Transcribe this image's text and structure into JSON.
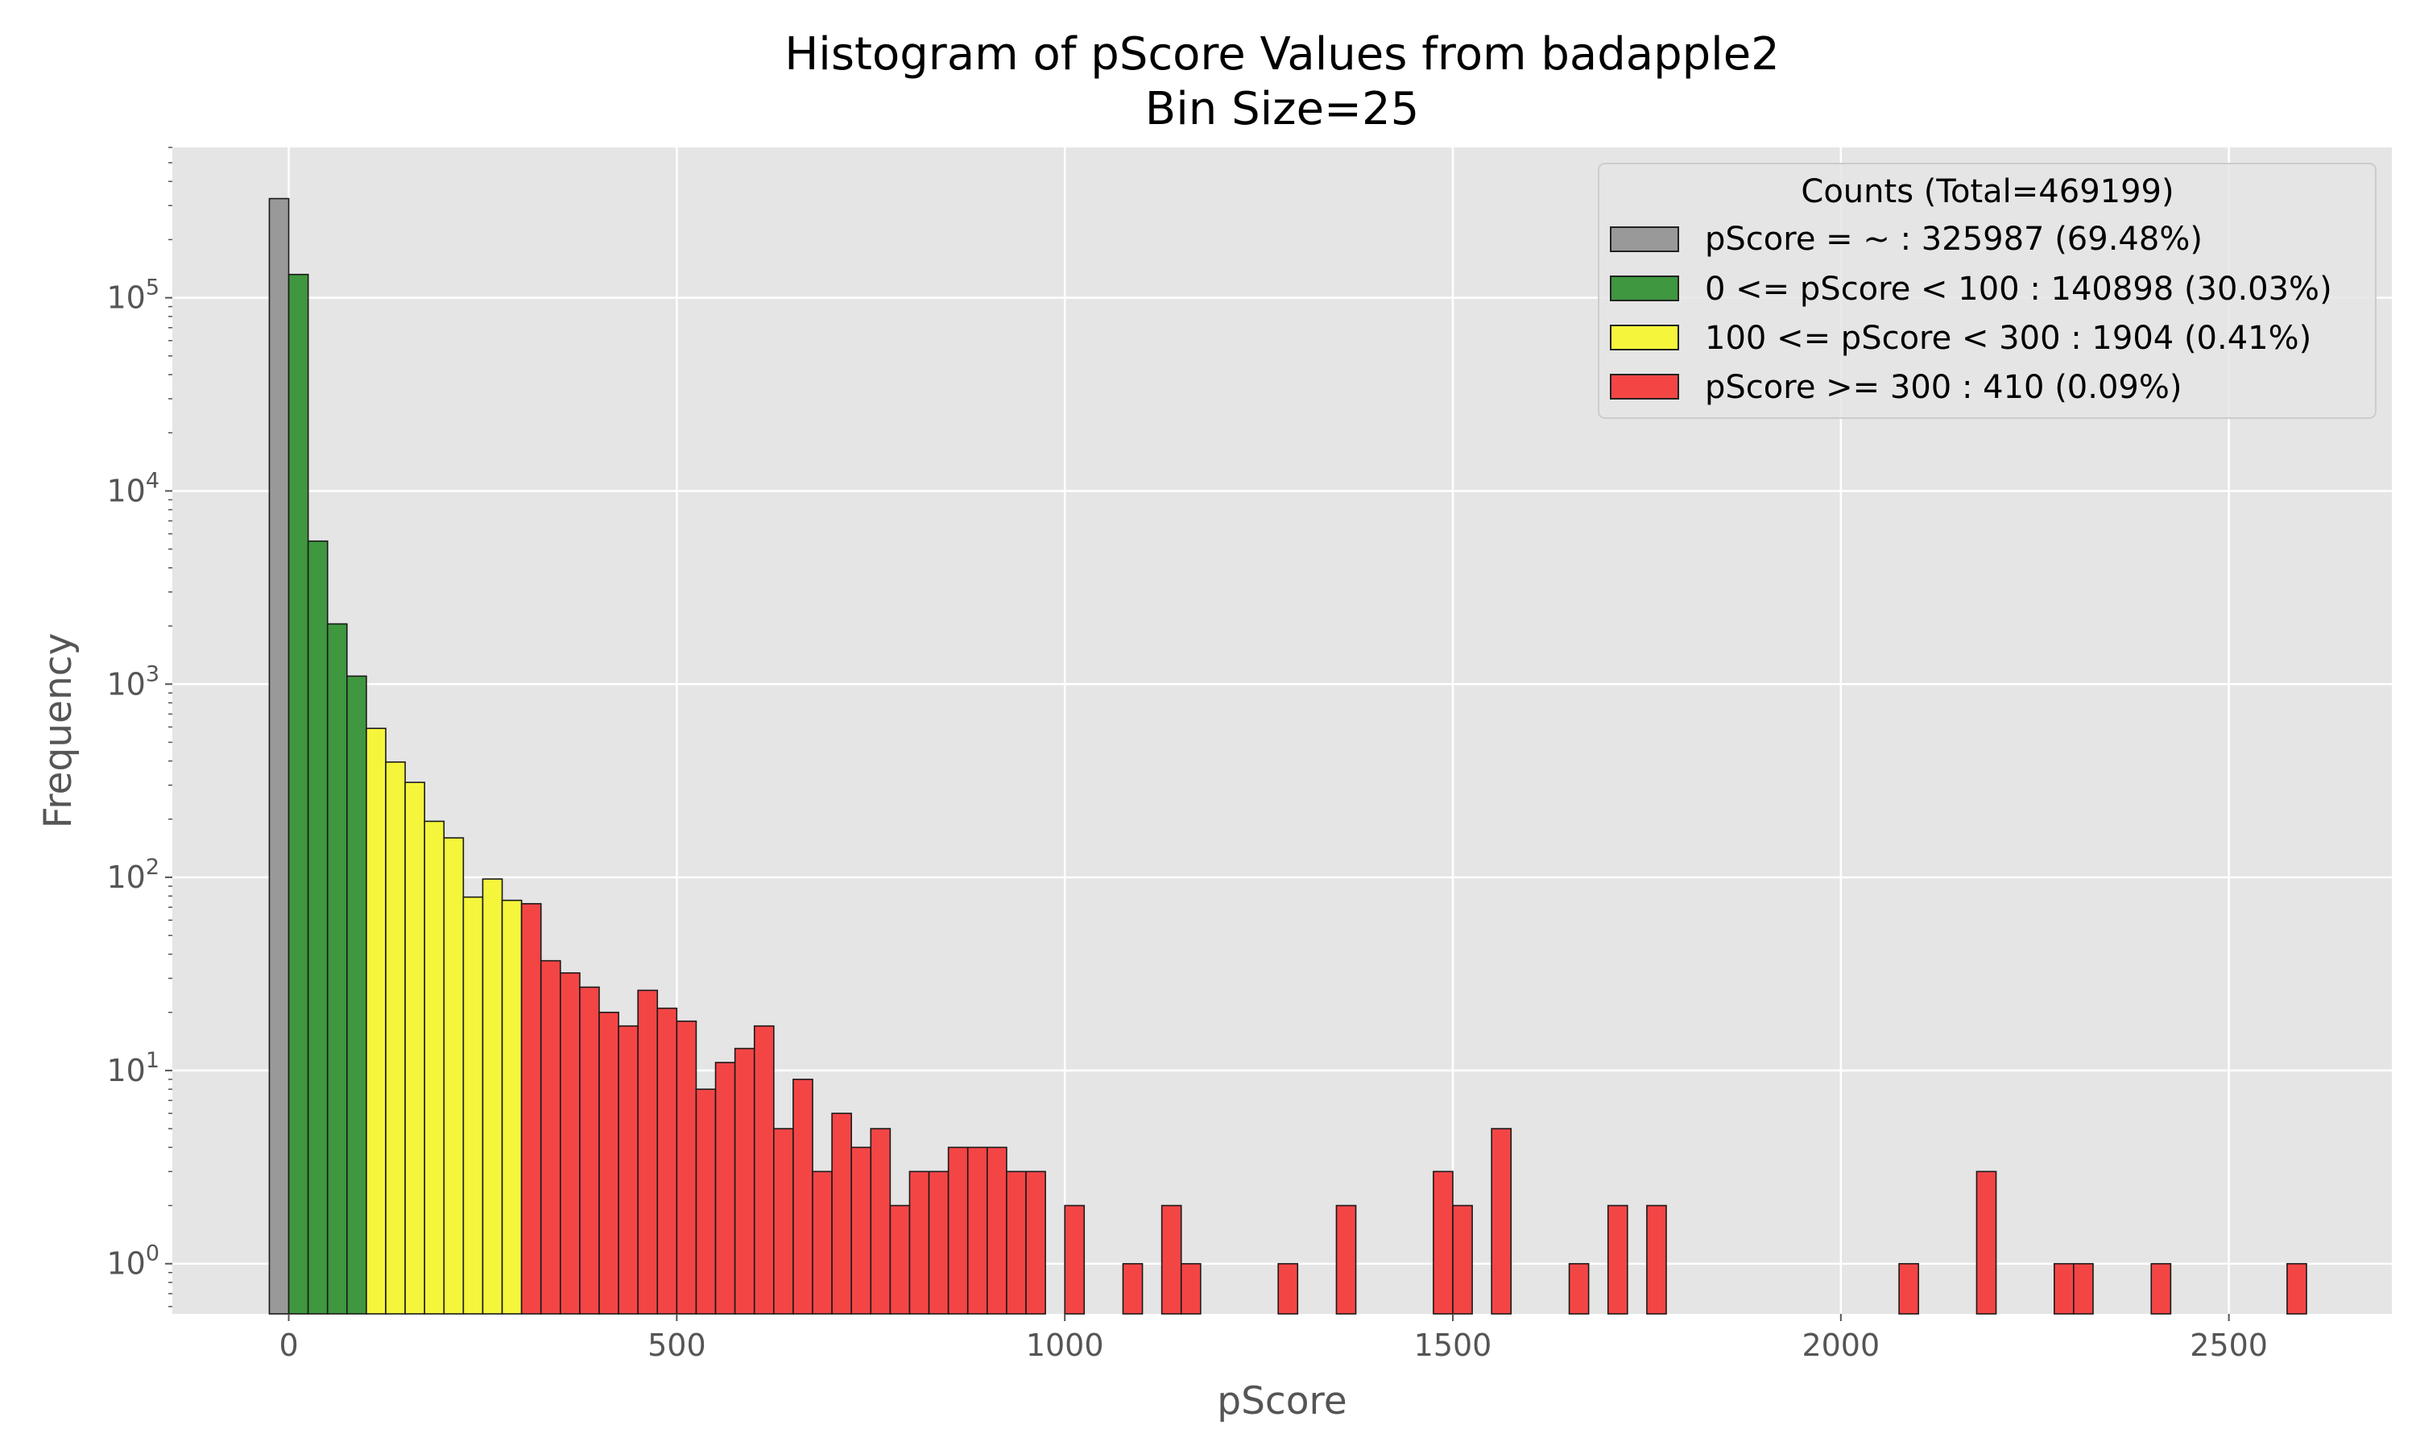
{
  "chart_data": {
    "type": "bar",
    "title": "Histogram of pScore Values from badapple2",
    "subtitle": "Bin Size=25",
    "xlabel": "pScore",
    "ylabel": "Frequency",
    "xlim": [
      -150,
      2710
    ],
    "ylim": [
      0.55,
      600000
    ],
    "yscale": "log",
    "grid": true,
    "bin_size": 25,
    "x_ticks": [
      "0",
      "500",
      "1000",
      "1500",
      "2000",
      "2500"
    ],
    "y_ticks": [
      {
        "base": "10",
        "exp": "0"
      },
      {
        "base": "10",
        "exp": "1"
      },
      {
        "base": "10",
        "exp": "2"
      },
      {
        "base": "10",
        "exp": "3"
      },
      {
        "base": "10",
        "exp": "4"
      },
      {
        "base": "10",
        "exp": "5"
      }
    ],
    "legend": {
      "title": "Counts (Total=469199)",
      "placement": "top-right",
      "entries": [
        {
          "label": "pScore = ~ : 325987 (69.48%)",
          "color": "#999999"
        },
        {
          "label": "0 <= pScore < 100 : 140898 (30.03%)",
          "color": "#3f973f"
        },
        {
          "label": "100 <= pScore < 300 : 1904 (0.41%)",
          "color": "#f5f53c"
        },
        {
          "label": "pScore >= 300 : 410 (0.09%)",
          "color": "#f44545"
        }
      ]
    },
    "series": [
      {
        "name": "pScore = ~",
        "color": "#999999",
        "bins": [
          [
            -25,
            325987
          ]
        ]
      },
      {
        "name": "0 <= pScore < 100",
        "color": "#3f973f",
        "bins": [
          [
            0,
            132000
          ],
          [
            25,
            5500
          ],
          [
            50,
            2050
          ],
          [
            75,
            1100
          ]
        ]
      },
      {
        "name": "100 <= pScore < 300",
        "color": "#f5f53c",
        "bins": [
          [
            100,
            590
          ],
          [
            125,
            395
          ],
          [
            150,
            310
          ],
          [
            175,
            195
          ],
          [
            200,
            160
          ],
          [
            225,
            79
          ],
          [
            250,
            98
          ],
          [
            275,
            76
          ]
        ]
      },
      {
        "name": "pScore >= 300",
        "color": "#f44545",
        "bins": [
          [
            300,
            73
          ],
          [
            325,
            37
          ],
          [
            350,
            32
          ],
          [
            375,
            27
          ],
          [
            400,
            20
          ],
          [
            425,
            17
          ],
          [
            450,
            26
          ],
          [
            475,
            21
          ],
          [
            500,
            18
          ],
          [
            525,
            8
          ],
          [
            550,
            11
          ],
          [
            575,
            13
          ],
          [
            600,
            17
          ],
          [
            625,
            5
          ],
          [
            650,
            9
          ],
          [
            675,
            3
          ],
          [
            700,
            6
          ],
          [
            725,
            4
          ],
          [
            750,
            5
          ],
          [
            775,
            2
          ],
          [
            800,
            3
          ],
          [
            825,
            3
          ],
          [
            850,
            4
          ],
          [
            875,
            4
          ],
          [
            900,
            4
          ],
          [
            925,
            3
          ],
          [
            950,
            3
          ],
          [
            1000,
            2
          ],
          [
            1075,
            1
          ],
          [
            1125,
            2
          ],
          [
            1150,
            1
          ],
          [
            1275,
            1
          ],
          [
            1350,
            2
          ],
          [
            1475,
            3
          ],
          [
            1500,
            2
          ],
          [
            1550,
            5
          ],
          [
            1650,
            1
          ],
          [
            1700,
            2
          ],
          [
            1750,
            2
          ],
          [
            2075,
            1
          ],
          [
            2175,
            3
          ],
          [
            2275,
            1
          ],
          [
            2300,
            1
          ],
          [
            2400,
            1
          ],
          [
            2575,
            1
          ]
        ]
      }
    ]
  }
}
